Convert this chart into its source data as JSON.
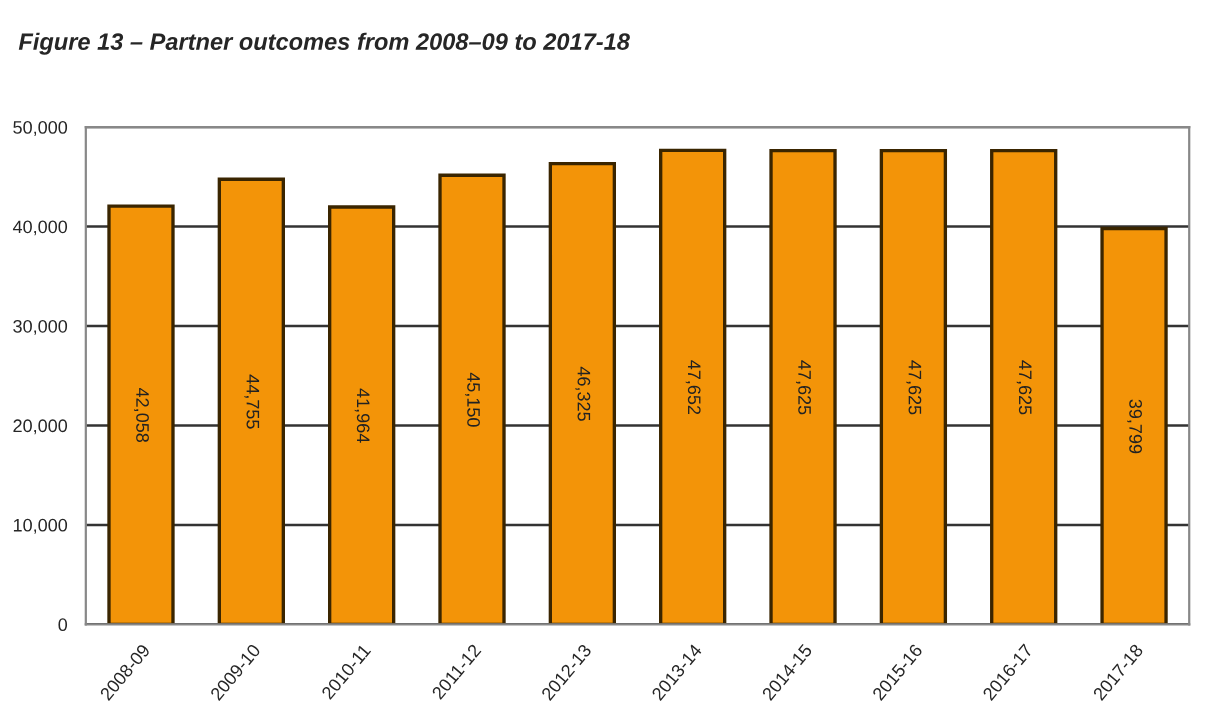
{
  "chart_data": {
    "type": "bar",
    "title": "Figure 13 – Partner outcomes from 2008–09 to 2017-18",
    "categories": [
      "2008-09",
      "2009-10",
      "2010-11",
      "2011-12",
      "2012-13",
      "2013-14",
      "2014-15",
      "2015-16",
      "2016-17",
      "2017-18"
    ],
    "values": [
      42058,
      44755,
      41964,
      45150,
      46325,
      47652,
      47625,
      47625,
      47625,
      39799
    ],
    "value_labels": [
      "42,058",
      "44,755",
      "41,964",
      "45,150",
      "46,325",
      "47,652",
      "47,625",
      "47,625",
      "47,625",
      "39,799"
    ],
    "color": "#f39408",
    "ylim": [
      0,
      50000
    ],
    "yticks": [
      {
        "value": 0,
        "label": "0"
      },
      {
        "value": 10000,
        "label": "10,000"
      },
      {
        "value": 20000,
        "label": "20,000"
      },
      {
        "value": 30000,
        "label": "30,000"
      },
      {
        "value": 40000,
        "label": "40,000"
      },
      {
        "value": 50000,
        "label": "50,000"
      }
    ],
    "grid": "y",
    "legend": false
  }
}
